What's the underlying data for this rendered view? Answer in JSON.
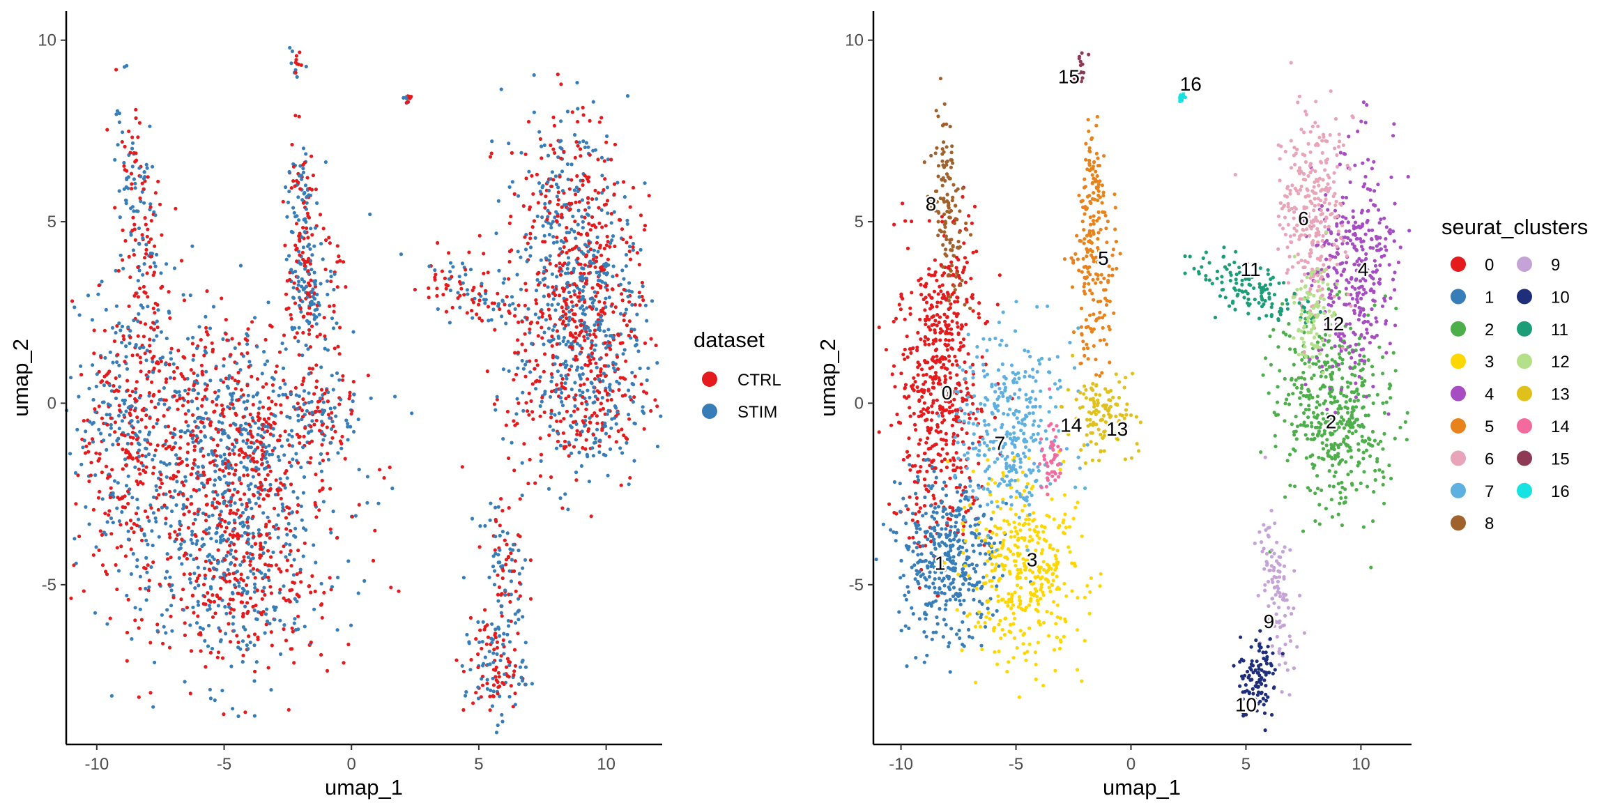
{
  "chart_data": [
    {
      "type": "scatter",
      "id": "left",
      "title": "",
      "xlabel": "umap_1",
      "ylabel": "umap_2",
      "xlim": [
        -11.2,
        12.2
      ],
      "ylim": [
        -9.4,
        10.8
      ],
      "x_ticks": [
        -10,
        -5,
        0,
        5,
        10
      ],
      "x_tick_labels": [
        "-10",
        "-5",
        "0",
        "5",
        "10"
      ],
      "y_ticks": [
        -5,
        0,
        5,
        10
      ],
      "y_tick_labels": [
        "-5",
        "0",
        "5",
        "10"
      ],
      "grid": false,
      "legend": {
        "title": "dataset",
        "placement": "right",
        "entries": [
          {
            "label": "CTRL",
            "color": "#e41a1c"
          },
          {
            "label": "STIM",
            "color": "#377eb8"
          }
        ]
      },
      "regions": [
        {
          "cx": -5.2,
          "cy": -2.5,
          "sx": 2.6,
          "sy": 2.3,
          "w": 2600,
          "rot": 0.0
        },
        {
          "cx": -8.8,
          "cy": -0.5,
          "sx": 1.0,
          "sy": 2.0,
          "w": 900,
          "rot": 0.0
        },
        {
          "cx": -8.3,
          "cy": 5.0,
          "sx": 0.4,
          "sy": 1.8,
          "w": 400,
          "rot": 0.15
        },
        {
          "cx": -4.0,
          "cy": -4.8,
          "sx": 1.3,
          "sy": 1.3,
          "w": 700,
          "rot": 0.0
        },
        {
          "cx": -5.0,
          "cy": 0.0,
          "sx": 1.4,
          "sy": 1.2,
          "w": 600,
          "rot": 0.0
        },
        {
          "cx": -2.0,
          "cy": 5.2,
          "sx": 0.3,
          "sy": 1.2,
          "w": 300,
          "rot": 0.0
        },
        {
          "cx": -1.5,
          "cy": 3.0,
          "sx": 0.5,
          "sy": 0.8,
          "w": 400,
          "rot": 0.0
        },
        {
          "cx": -1.3,
          "cy": -0.4,
          "sx": 0.8,
          "sy": 0.6,
          "w": 300,
          "rot": 0.3
        },
        {
          "cx": -3.6,
          "cy": -1.3,
          "sx": 0.3,
          "sy": 0.6,
          "w": 120,
          "rot": 0.0
        },
        {
          "cx": 8.4,
          "cy": 5.2,
          "sx": 1.2,
          "sy": 1.5,
          "w": 900,
          "rot": 0.0
        },
        {
          "cx": 9.4,
          "cy": 3.2,
          "sx": 1.1,
          "sy": 1.2,
          "w": 900,
          "rot": 0.0
        },
        {
          "cx": 9.0,
          "cy": 0.2,
          "sx": 1.4,
          "sy": 1.3,
          "w": 1200,
          "rot": 0.0
        },
        {
          "cx": 5.0,
          "cy": 3.0,
          "sx": 1.4,
          "sy": 0.4,
          "w": 300,
          "rot": -0.3
        },
        {
          "cx": 6.0,
          "cy": -4.5,
          "sx": 0.4,
          "sy": 1.0,
          "w": 250,
          "rot": 0.2
        },
        {
          "cx": 5.6,
          "cy": -7.3,
          "sx": 0.6,
          "sy": 0.7,
          "w": 350,
          "rot": 0.0
        },
        {
          "cx": -2.2,
          "cy": 9.4,
          "sx": 0.15,
          "sy": 0.3,
          "w": 40,
          "rot": 0.0
        },
        {
          "cx": 2.2,
          "cy": 8.4,
          "sx": 0.08,
          "sy": 0.1,
          "w": 20,
          "rot": 0.0
        }
      ]
    },
    {
      "type": "scatter",
      "id": "right",
      "title": "",
      "xlabel": "umap_1",
      "ylabel": "umap_2",
      "xlim": [
        -11.2,
        12.2
      ],
      "ylim": [
        -9.4,
        10.8
      ],
      "x_ticks": [
        -10,
        -5,
        0,
        5,
        10
      ],
      "x_tick_labels": [
        "-10",
        "-5",
        "0",
        "5",
        "10"
      ],
      "y_ticks": [
        -5,
        0,
        5,
        10
      ],
      "y_tick_labels": [
        "-5",
        "0",
        "5",
        "10"
      ],
      "grid": false,
      "legend": {
        "title": "seurat_clusters",
        "placement": "right",
        "columns": 2,
        "entries": [
          {
            "label": "0",
            "color": "#e41a1c"
          },
          {
            "label": "1",
            "color": "#377eb8"
          },
          {
            "label": "2",
            "color": "#4daf4a"
          },
          {
            "label": "3",
            "color": "#ffd700"
          },
          {
            "label": "4",
            "color": "#a64dc2"
          },
          {
            "label": "5",
            "color": "#e8821a"
          },
          {
            "label": "6",
            "color": "#e8a4b8"
          },
          {
            "label": "7",
            "color": "#5db0e0"
          },
          {
            "label": "8",
            "color": "#a0622d"
          },
          {
            "label": "9",
            "color": "#c5a3d6"
          },
          {
            "label": "10",
            "color": "#1f2e7a"
          },
          {
            "label": "11",
            "color": "#1b9e77"
          },
          {
            "label": "12",
            "color": "#b5e08a"
          },
          {
            "label": "13",
            "color": "#e0c01a"
          },
          {
            "label": "14",
            "color": "#f36a9f"
          },
          {
            "label": "15",
            "color": "#8e3a55"
          },
          {
            "label": "16",
            "color": "#17e2e2"
          }
        ]
      },
      "clusters": [
        {
          "label": "0",
          "color": "#e41a1c",
          "lx": -8.0,
          "ly": 0.3,
          "blobs": [
            {
              "cx": -8.3,
              "cy": 0.0,
              "sx": 1.0,
              "sy": 2.0,
              "w": 1300,
              "rot": 0.0
            },
            {
              "cx": -8.0,
              "cy": 2.8,
              "sx": 0.6,
              "sy": 0.9,
              "w": 300,
              "rot": 0.0
            }
          ]
        },
        {
          "label": "1",
          "color": "#377eb8",
          "lx": -8.3,
          "ly": -4.4,
          "blobs": [
            {
              "cx": -8.0,
              "cy": -4.3,
              "sx": 1.1,
              "sy": 1.1,
              "w": 1100,
              "rot": 0.0
            }
          ]
        },
        {
          "label": "2",
          "color": "#4daf4a",
          "lx": 8.7,
          "ly": -0.5,
          "blobs": [
            {
              "cx": 9.0,
              "cy": -0.2,
              "sx": 1.3,
              "sy": 1.4,
              "w": 1300,
              "rot": 0.0
            }
          ]
        },
        {
          "label": "3",
          "color": "#ffd700",
          "lx": -4.3,
          "ly": -4.3,
          "blobs": [
            {
              "cx": -4.7,
              "cy": -4.6,
              "sx": 1.2,
              "sy": 1.2,
              "w": 1100,
              "rot": 0.0
            }
          ]
        },
        {
          "label": "4",
          "color": "#a64dc2",
          "lx": 10.1,
          "ly": 3.7,
          "blobs": [
            {
              "cx": 9.7,
              "cy": 3.8,
              "sx": 0.9,
              "sy": 1.6,
              "w": 950,
              "rot": 0.0
            }
          ]
        },
        {
          "label": "5",
          "color": "#e8821a",
          "lx": -1.2,
          "ly": 4.0,
          "blobs": [
            {
              "cx": -1.6,
              "cy": 3.8,
              "sx": 0.5,
              "sy": 1.4,
              "w": 500,
              "rot": 0.0
            },
            {
              "cx": -1.7,
              "cy": 6.2,
              "sx": 0.25,
              "sy": 0.6,
              "w": 120,
              "rot": 0.0
            }
          ]
        },
        {
          "label": "6",
          "color": "#e8a4b8",
          "lx": 7.5,
          "ly": 5.1,
          "blobs": [
            {
              "cx": 7.9,
              "cy": 5.3,
              "sx": 0.7,
              "sy": 1.3,
              "w": 800,
              "rot": 0.0
            }
          ]
        },
        {
          "label": "7",
          "color": "#5db0e0",
          "lx": -5.7,
          "ly": -1.1,
          "blobs": [
            {
              "cx": -5.3,
              "cy": -0.6,
              "sx": 1.2,
              "sy": 1.3,
              "w": 900,
              "rot": 0.0
            }
          ]
        },
        {
          "label": "8",
          "color": "#a0622d",
          "lx": -8.7,
          "ly": 5.5,
          "blobs": [
            {
              "cx": -8.0,
              "cy": 5.5,
              "sx": 0.3,
              "sy": 1.5,
              "w": 350,
              "rot": 0.15
            }
          ]
        },
        {
          "label": "9",
          "color": "#c5a3d6",
          "lx": 6.0,
          "ly": -6.0,
          "blobs": [
            {
              "cx": 6.3,
              "cy": -5.3,
              "sx": 0.35,
              "sy": 1.0,
              "w": 300,
              "rot": 0.2
            }
          ]
        },
        {
          "label": "10",
          "color": "#1f2e7a",
          "lx": 5.0,
          "ly": -8.3,
          "blobs": [
            {
              "cx": 5.6,
              "cy": -7.5,
              "sx": 0.4,
              "sy": 0.6,
              "w": 280,
              "rot": 0.0
            }
          ]
        },
        {
          "label": "11",
          "color": "#1b9e77",
          "lx": 5.2,
          "ly": 3.7,
          "blobs": [
            {
              "cx": 5.3,
              "cy": 3.1,
              "sx": 1.2,
              "sy": 0.35,
              "w": 350,
              "rot": -0.3
            }
          ]
        },
        {
          "label": "12",
          "color": "#b5e08a",
          "lx": 8.8,
          "ly": 2.2,
          "blobs": [
            {
              "cx": 7.8,
              "cy": 2.4,
              "sx": 0.5,
              "sy": 0.7,
              "w": 250,
              "rot": 0.0
            }
          ]
        },
        {
          "label": "13",
          "color": "#e0c01a",
          "lx": -0.6,
          "ly": -0.7,
          "blobs": [
            {
              "cx": -1.3,
              "cy": -0.3,
              "sx": 0.7,
              "sy": 0.6,
              "w": 350,
              "rot": 0.3
            }
          ]
        },
        {
          "label": "14",
          "color": "#f36a9f",
          "lx": -2.6,
          "ly": -0.6,
          "blobs": [
            {
              "cx": -3.4,
              "cy": -1.5,
              "sx": 0.25,
              "sy": 0.5,
              "w": 130,
              "rot": 0.0
            }
          ]
        },
        {
          "label": "15",
          "color": "#8e3a55",
          "lx": -2.7,
          "ly": 9.0,
          "blobs": [
            {
              "cx": -2.2,
              "cy": 9.4,
              "sx": 0.15,
              "sy": 0.3,
              "w": 40,
              "rot": 0.0
            }
          ]
        },
        {
          "label": "16",
          "color": "#17e2e2",
          "lx": 2.6,
          "ly": 8.8,
          "blobs": [
            {
              "cx": 2.2,
              "cy": 8.4,
              "sx": 0.08,
              "sy": 0.1,
              "w": 25,
              "rot": 0.0
            }
          ]
        }
      ]
    }
  ]
}
